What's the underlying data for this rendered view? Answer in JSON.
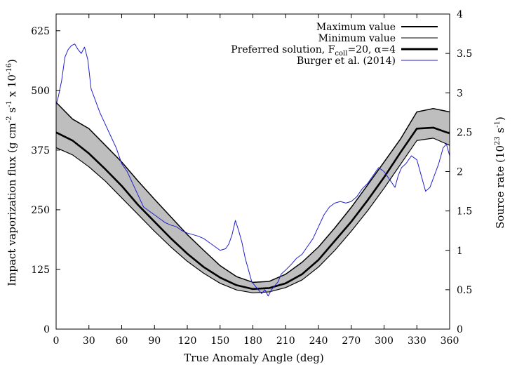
{
  "chart_data": {
    "type": "line",
    "xlabel": "True Anomaly Angle (deg)",
    "ylabel_left": {
      "main": "Impact vaporization flux (g cm",
      "sup1": "-2",
      "s": " s",
      "sup2": "-1",
      "x": " x 10",
      "sup3": "-16",
      "close": ")"
    },
    "ylabel_right": {
      "main": "Source rate (10",
      "sup1": "23",
      "s": " s",
      "sup2": "-1",
      "close": ")"
    },
    "xlim": [
      0,
      360
    ],
    "ylim_left": [
      0,
      660
    ],
    "ylim_right": [
      0,
      4
    ],
    "x_ticks": [
      0,
      30,
      60,
      90,
      120,
      150,
      180,
      210,
      240,
      270,
      300,
      330,
      360
    ],
    "x_tick_labels": [
      "0",
      "30",
      "60",
      "90",
      "120",
      "150",
      "180",
      "210",
      "240",
      "270",
      "300",
      "330",
      "360"
    ],
    "y_left_ticks": [
      0,
      125,
      250,
      375,
      500,
      625
    ],
    "y_left_tick_labels": [
      "0",
      "125",
      "250",
      "375",
      "500",
      "625"
    ],
    "y_right_ticks": [
      0,
      0.5,
      1,
      1.5,
      2,
      2.5,
      3,
      3.5,
      4
    ],
    "y_right_tick_labels": [
      "0",
      "0.5",
      "1",
      "1.5",
      "2",
      "2.5",
      "3",
      "3.5",
      "4"
    ],
    "legend": {
      "position": "top-right",
      "entries": [
        {
          "label": "Maximum value",
          "style": "medium"
        },
        {
          "label": "Minimum value",
          "style": "thin"
        },
        {
          "label": "Preferred solution, F",
          "sub": "coll",
          "tail": "=20, α=4",
          "style": "thick"
        },
        {
          "label": "Burger et al. (2014)",
          "style": "blue"
        }
      ]
    },
    "band_color": "#bebebe",
    "line_color": "#000000",
    "blue_color": "#1f1fcf",
    "x": [
      0,
      15,
      30,
      45,
      60,
      75,
      90,
      105,
      120,
      135,
      150,
      165,
      180,
      195,
      210,
      225,
      240,
      255,
      270,
      285,
      300,
      315,
      330,
      345,
      360
    ],
    "series": [
      {
        "name": "Maximum value",
        "axis": "left",
        "values": [
          475,
          440,
          420,
          385,
          350,
          310,
          272,
          235,
          198,
          165,
          133,
          110,
          98,
          100,
          115,
          140,
          172,
          212,
          255,
          302,
          350,
          398,
          455,
          462,
          455
        ]
      },
      {
        "name": "Minimum value",
        "axis": "left",
        "values": [
          380,
          365,
          340,
          310,
          275,
          240,
          205,
          172,
          142,
          117,
          96,
          82,
          76,
          78,
          87,
          103,
          130,
          165,
          205,
          248,
          295,
          345,
          395,
          400,
          385
        ]
      },
      {
        "name": "Preferred solution",
        "axis": "left",
        "values": [
          412,
          395,
          368,
          335,
          300,
          260,
          225,
          190,
          158,
          130,
          108,
          92,
          84,
          86,
          96,
          115,
          145,
          185,
          225,
          270,
          318,
          370,
          420,
          422,
          410
        ]
      },
      {
        "name": "Burger et al. (2014)",
        "axis": "right",
        "x": [
          0,
          2,
          5,
          8,
          11,
          14,
          17,
          20,
          23,
          26,
          29,
          32,
          36,
          40,
          45,
          50,
          55,
          60,
          65,
          70,
          75,
          80,
          85,
          90,
          95,
          100,
          105,
          110,
          115,
          120,
          125,
          130,
          135,
          140,
          145,
          150,
          155,
          158,
          161,
          164,
          167,
          170,
          173,
          176,
          179,
          182,
          185,
          188,
          191,
          194,
          197,
          200,
          203,
          206,
          210,
          215,
          220,
          225,
          230,
          235,
          240,
          245,
          250,
          255,
          260,
          265,
          270,
          275,
          280,
          285,
          290,
          295,
          300,
          305,
          310,
          313,
          316,
          320,
          325,
          330,
          334,
          338,
          342,
          346,
          350,
          354,
          357,
          360
        ],
        "values": [
          2.85,
          2.95,
          3.15,
          3.45,
          3.55,
          3.6,
          3.62,
          3.55,
          3.5,
          3.58,
          3.42,
          3.05,
          2.9,
          2.75,
          2.6,
          2.45,
          2.3,
          2.1,
          2.0,
          1.85,
          1.7,
          1.55,
          1.5,
          1.45,
          1.4,
          1.35,
          1.32,
          1.3,
          1.25,
          1.22,
          1.2,
          1.18,
          1.15,
          1.1,
          1.05,
          1.0,
          1.02,
          1.08,
          1.2,
          1.38,
          1.25,
          1.1,
          0.9,
          0.75,
          0.6,
          0.55,
          0.5,
          0.45,
          0.5,
          0.42,
          0.5,
          0.55,
          0.6,
          0.7,
          0.75,
          0.82,
          0.9,
          0.95,
          1.05,
          1.15,
          1.3,
          1.45,
          1.55,
          1.6,
          1.62,
          1.6,
          1.62,
          1.68,
          1.78,
          1.85,
          1.95,
          2.05,
          2.0,
          1.9,
          1.8,
          1.95,
          2.05,
          2.1,
          2.2,
          2.15,
          1.95,
          1.75,
          1.8,
          1.95,
          2.1,
          2.3,
          2.35,
          2.2
        ]
      }
    ]
  }
}
